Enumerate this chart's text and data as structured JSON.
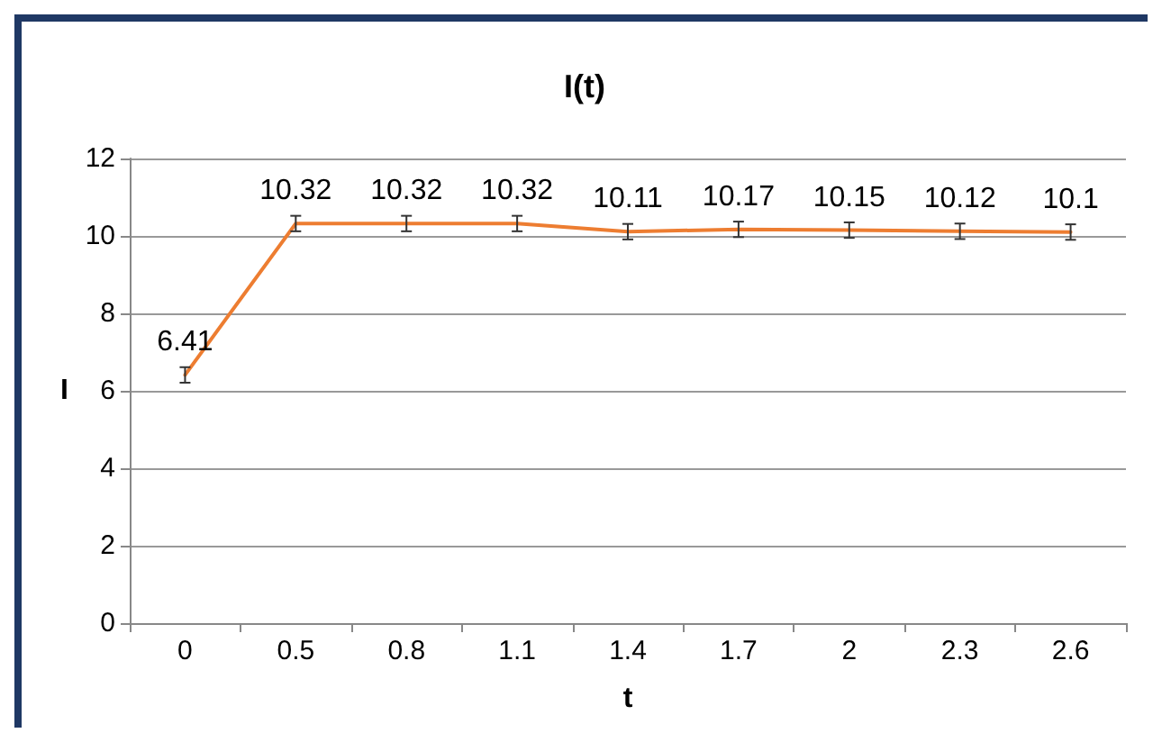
{
  "chart_data": {
    "type": "line",
    "title": "I(t)",
    "xlabel": "t",
    "ylabel": "I",
    "categories": [
      "0",
      "0.5",
      "0.8",
      "1.1",
      "1.4",
      "1.7",
      "2",
      "2.3",
      "2.6"
    ],
    "series": [
      {
        "color": "#ed7d31",
        "values": [
          6.41,
          10.32,
          10.32,
          10.32,
          10.11,
          10.17,
          10.15,
          10.12,
          10.1
        ],
        "errors": [
          0.2,
          0.2,
          0.2,
          0.2,
          0.2,
          0.2,
          0.2,
          0.2,
          0.2
        ]
      }
    ],
    "ylim": [
      0,
      12
    ],
    "yticks": [
      0,
      2,
      4,
      6,
      8,
      10,
      12
    ],
    "grid": "y",
    "marker": "none",
    "line_style": "solid",
    "data_labels": true
  }
}
